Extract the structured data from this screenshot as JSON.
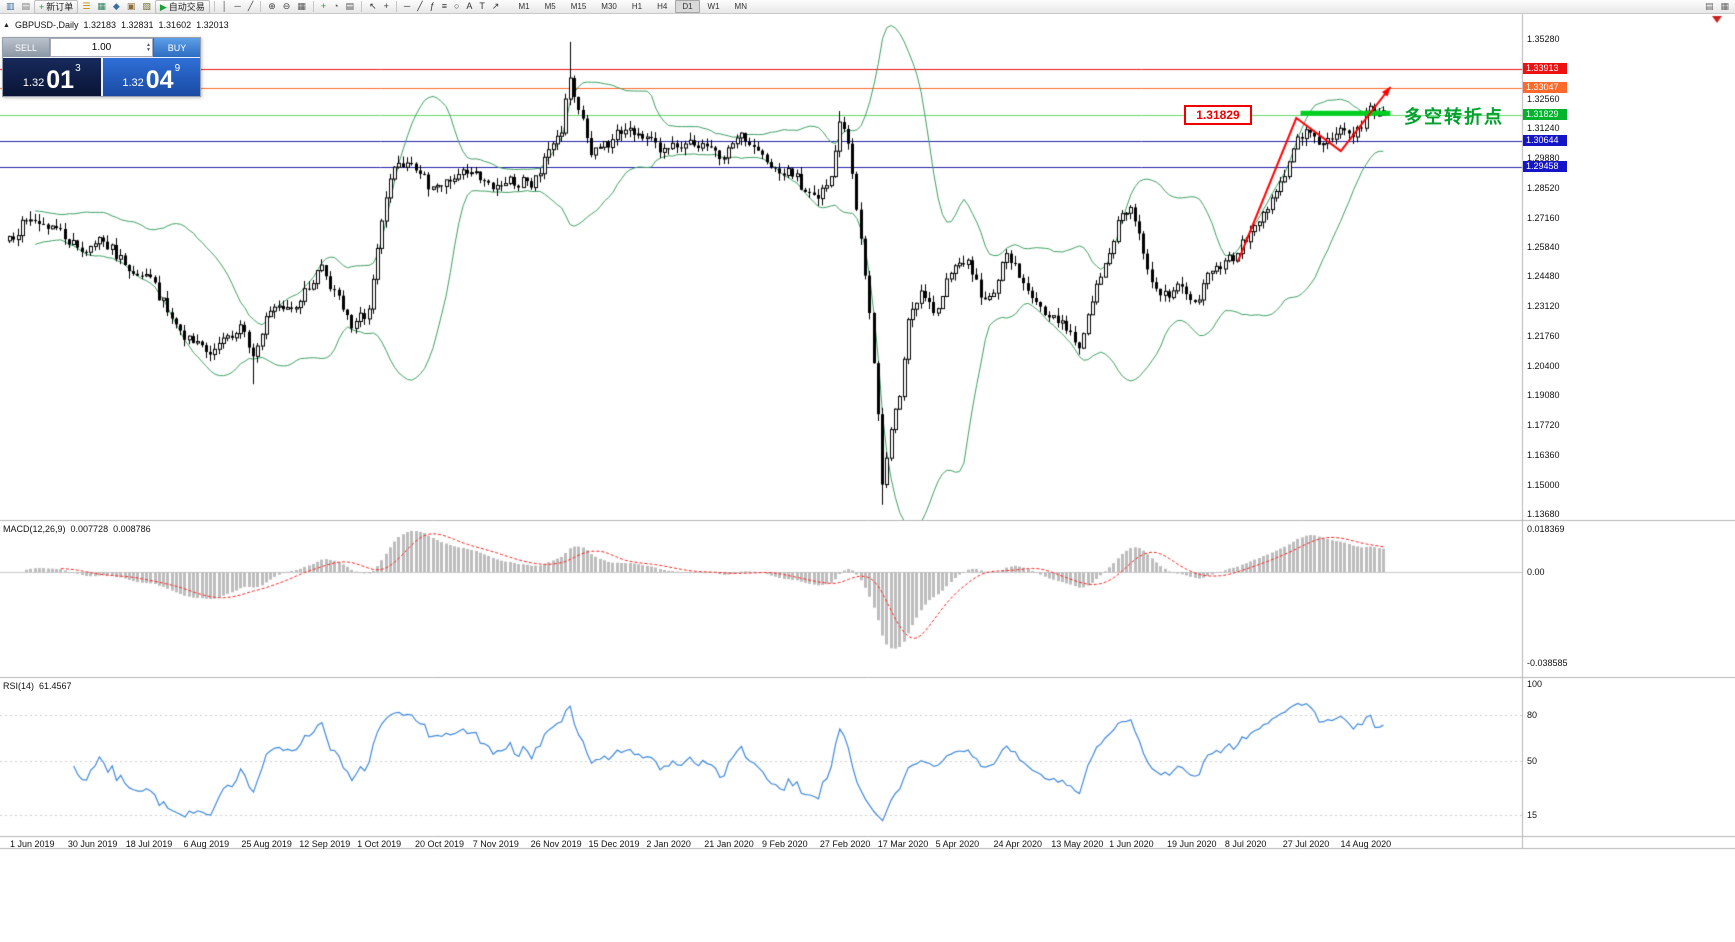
{
  "toolbar": {
    "new_order_label": "新订单",
    "auto_trading_label": "自动交易",
    "timeframes": [
      "M1",
      "M5",
      "M15",
      "M30",
      "H1",
      "H4",
      "D1",
      "W1",
      "MN"
    ],
    "active_timeframe": "D1",
    "groups": [
      {
        "type": "icons",
        "items": [
          {
            "name": "new-chart-icon",
            "glyph": "▥",
            "color": "#3b6ea5"
          },
          {
            "name": "chart-profiles-icon",
            "glyph": "▤",
            "color": "#7a7a7a"
          }
        ]
      },
      {
        "type": "button",
        "name": "new-order-button",
        "label_key": "new_order_label",
        "glyph": "+",
        "glyph_color": "#18a035"
      },
      {
        "type": "icons",
        "items": [
          {
            "name": "market-watch-icon",
            "glyph": "☰",
            "color": "#c08a00"
          },
          {
            "name": "data-window-icon",
            "glyph": "▦",
            "color": "#2f7f5f"
          },
          {
            "name": "navigator-icon",
            "glyph": "◆",
            "color": "#3b6ea5"
          },
          {
            "name": "terminal-icon",
            "glyph": "▣",
            "color": "#8a6d3b"
          },
          {
            "name": "strategy-tester-icon",
            "glyph": "▧",
            "color": "#6f6f2f"
          }
        ]
      },
      {
        "type": "button",
        "name": "auto-trading-button",
        "label_key": "auto_trading_label",
        "glyph": "▶",
        "glyph_color": "#18a035"
      },
      {
        "type": "sep"
      },
      {
        "type": "icons",
        "items": [
          {
            "name": "vertical-line-tool-icon",
            "glyph": "│",
            "color": "#444"
          },
          {
            "name": "horizontal-line-tool-icon",
            "glyph": "─",
            "color": "#444"
          },
          {
            "name": "trendline-tool-icon",
            "glyph": "╱",
            "color": "#444"
          }
        ]
      },
      {
        "type": "sep"
      },
      {
        "type": "icons",
        "items": [
          {
            "name": "zoom-in-icon",
            "glyph": "⊕",
            "color": "#444"
          },
          {
            "name": "zoom-out-icon",
            "glyph": "⊖",
            "color": "#444"
          },
          {
            "name": "tile-windows-icon",
            "glyph": "▦",
            "color": "#555"
          }
        ]
      },
      {
        "type": "sep"
      },
      {
        "type": "icons",
        "items": [
          {
            "name": "add-indicator-icon",
            "glyph": "+",
            "color": "#18a035"
          },
          {
            "name": "clock-icon",
            "glyph": "◔",
            "color": "#555"
          },
          {
            "name": "template-icon",
            "glyph": "▤",
            "color": "#555"
          }
        ]
      },
      {
        "type": "sep"
      },
      {
        "type": "icons",
        "items": [
          {
            "name": "cursor-icon",
            "glyph": "↖",
            "color": "#333"
          },
          {
            "name": "crosshair-icon",
            "glyph": "+",
            "color": "#333"
          }
        ]
      },
      {
        "type": "sep"
      },
      {
        "type": "icons",
        "items": [
          {
            "name": "line-segment-icon",
            "glyph": "─",
            "color": "#333"
          },
          {
            "name": "diagonal-line-icon",
            "glyph": "╱",
            "color": "#333"
          },
          {
            "name": "fibonacci-icon",
            "glyph": "ƒ",
            "color": "#333"
          },
          {
            "name": "channel-icon",
            "glyph": "≡",
            "color": "#333"
          },
          {
            "name": "shapes-icon",
            "glyph": "○",
            "color": "#333"
          },
          {
            "name": "text-tool-icon",
            "glyph": "A",
            "color": "#333"
          },
          {
            "name": "label-tool-icon",
            "glyph": "T",
            "color": "#333"
          },
          {
            "name": "arrow-tool-icon",
            "glyph": "↗",
            "color": "#333"
          }
        ]
      },
      {
        "type": "timeframes"
      },
      {
        "type": "spacer"
      },
      {
        "type": "icons",
        "items": [
          {
            "name": "window-cascade-icon",
            "glyph": "▤",
            "color": "#666"
          },
          {
            "name": "window-tile-icon",
            "glyph": "▦",
            "color": "#666"
          }
        ]
      }
    ]
  },
  "chart_header": {
    "marker": "▲",
    "symbol_period": "GBPUSD-,Daily",
    "open": "1.32183",
    "high": "1.32831",
    "low": "1.31602",
    "close": "1.32013"
  },
  "trade_panel": {
    "sell_label": "SELL",
    "buy_label": "BUY",
    "volume": "1.00",
    "spin_up_glyph": "▲",
    "spin_down_glyph": "▼",
    "sell_small": "1.32",
    "sell_big": "01",
    "sell_sup": "3",
    "buy_small": "1.32",
    "buy_big": "04",
    "buy_sup": "9"
  },
  "price_axis": {
    "ticks": [
      {
        "label": "1.35280",
        "price": 1.3528
      },
      {
        "label": "1.32560",
        "price": 1.3256
      },
      {
        "label": "1.31240",
        "price": 1.3124
      },
      {
        "label": "1.29880",
        "price": 1.2988
      },
      {
        "label": "1.28520",
        "price": 1.2852
      },
      {
        "label": "1.27160",
        "price": 1.2716
      },
      {
        "label": "1.25840",
        "price": 1.2584
      },
      {
        "label": "1.24480",
        "price": 1.2448
      },
      {
        "label": "1.23120",
        "price": 1.2312
      },
      {
        "label": "1.21760",
        "price": 1.2176
      },
      {
        "label": "1.20400",
        "price": 1.204
      },
      {
        "label": "1.19080",
        "price": 1.1908
      },
      {
        "label": "1.17720",
        "price": 1.1772
      },
      {
        "label": "1.16360",
        "price": 1.1636
      },
      {
        "label": "1.15000",
        "price": 1.15
      },
      {
        "label": "1.13680",
        "price": 1.1368
      }
    ],
    "lines": [
      {
        "label": "1.33913",
        "price": 1.33913,
        "line_color": "#ee1111",
        "badge_color": "#ee1111"
      },
      {
        "label": "1.33047",
        "price": 1.33047,
        "line_color": "#ff6a2a",
        "badge_color": "#ff6a2a"
      },
      {
        "label": "1.31829",
        "price": 1.31829,
        "line_color": "#69d969",
        "badge_color": "#00b32c"
      },
      {
        "label": "1.30644",
        "price": 1.30644,
        "line_color": "#2222aa",
        "badge_color": "#1515c8"
      },
      {
        "label": "1.29458",
        "price": 1.29458,
        "line_color": "#2222aa",
        "badge_color": "#1515c8"
      }
    ]
  },
  "macd_axis": [
    {
      "label": "0.018369",
      "value": 0.018369
    },
    {
      "label": "0.00",
      "value": 0
    },
    {
      "label": "-0.038585",
      "value": -0.038585
    }
  ],
  "rsi_axis": [
    {
      "label": "100",
      "value": 100
    },
    {
      "label": "80",
      "value": 80
    },
    {
      "label": "50",
      "value": 50
    },
    {
      "label": "15",
      "value": 15
    }
  ],
  "date_axis": {
    "labels": [
      "1 Jun 2019",
      "30 Jun 2019",
      "18 Jul 2019",
      "6 Aug 2019",
      "25 Aug 2019",
      "12 Sep 2019",
      "1 Oct 2019",
      "20 Oct 2019",
      "7 Nov 2019",
      "26 Nov 2019",
      "15 Dec 2019",
      "2 Jan 2020",
      "21 Jan 2020",
      "9 Feb 2020",
      "27 Feb 2020",
      "17 Mar 2020",
      "5 Apr 2020",
      "24 Apr 2020",
      "13 May 2020",
      "1 Jun 2020",
      "19 Jun 2020",
      "8 Jul 2020",
      "27 Jul 2020",
      "14 Aug 2020"
    ]
  },
  "indicators": {
    "macd_title": "MACD(12,26,9)",
    "macd_main": "0.007728",
    "macd_signal": "0.008786",
    "rsi_title": "RSI(14)",
    "rsi_value": "61.4567"
  },
  "annotations": {
    "pivot_price_label": "1.31829",
    "pivot_text": "多空转折点",
    "trend_polyline": [
      [
        287.4,
        1.2518
      ],
      [
        301,
        1.31685
      ],
      [
        311.4,
        1.30185
      ],
      [
        323,
        1.33094
      ]
    ],
    "green_segment": {
      "idx1": 302,
      "idx2": 323,
      "price": 1.319
    }
  },
  "colors": {
    "bollinger": "#3f9e63",
    "candle": "#000000",
    "candle_up_fill": "#ffffff",
    "macd_bars": "#bdbdbd",
    "macd_signal": "#ff2020",
    "rsi_line": "#4189dd",
    "trend_arrow": "#ff0000",
    "green_segment": "#00cf21",
    "pivot_text": "#00a22d",
    "scroll_marker": "#cc2222"
  },
  "chart_data": {
    "type": "candlestick",
    "symbol": "GBPUSD",
    "timeframe": "Daily",
    "ohlc_current": {
      "open": 1.32183,
      "high": 1.32831,
      "low": 1.31602,
      "close": 1.32013
    },
    "bollinger": {
      "period": 20,
      "deviation": 2
    },
    "macd": {
      "fast": 12,
      "slow": 26,
      "signal": 9,
      "main_value": 0.007728,
      "signal_value": 0.008786,
      "scale_max": 0.018369,
      "scale_min": -0.038585
    },
    "rsi": {
      "period": 14,
      "value": 61.4567,
      "levels": [
        80,
        50,
        15
      ]
    },
    "price_axis_range": {
      "top": 1.36413,
      "bottom": 1.1341
    },
    "candles_total": 322,
    "seed": 7,
    "close_anchors": [
      [
        0,
        1.263
      ],
      [
        5,
        1.2705
      ],
      [
        11,
        1.2668
      ],
      [
        17,
        1.256
      ],
      [
        21,
        1.2625
      ],
      [
        27,
        1.25
      ],
      [
        33,
        1.2445
      ],
      [
        37,
        1.2285
      ],
      [
        41,
        1.216
      ],
      [
        46,
        1.2105
      ],
      [
        50,
        1.2168
      ],
      [
        54,
        1.2228
      ],
      [
        57,
        1.2085
      ],
      [
        61,
        1.229
      ],
      [
        68,
        1.2335
      ],
      [
        73,
        1.25
      ],
      [
        80,
        1.2212
      ],
      [
        84,
        1.23
      ],
      [
        87,
        1.27
      ],
      [
        90,
        1.2945
      ],
      [
        95,
        1.293
      ],
      [
        99,
        1.2855
      ],
      [
        103,
        1.288
      ],
      [
        108,
        1.292
      ],
      [
        113,
        1.2845
      ],
      [
        117,
        1.29
      ],
      [
        122,
        1.2852
      ],
      [
        125,
        1.299
      ],
      [
        129,
        1.31
      ],
      [
        131,
        1.335
      ],
      [
        133,
        1.3205
      ],
      [
        136,
        1.3
      ],
      [
        141,
        1.307
      ],
      [
        145,
        1.3122
      ],
      [
        149,
        1.3082
      ],
      [
        152,
        1.3012
      ],
      [
        157,
        1.3032
      ],
      [
        162,
        1.3052
      ],
      [
        166,
        1.2982
      ],
      [
        171,
        1.31
      ],
      [
        176,
        1.3002
      ],
      [
        183,
        1.2902
      ],
      [
        189,
        1.2802
      ],
      [
        192,
        1.2902
      ],
      [
        194,
        1.315
      ],
      [
        196,
        1.3052
      ],
      [
        198,
        1.2752
      ],
      [
        200,
        1.2452
      ],
      [
        201,
        1.2282
      ],
      [
        203,
        1.1822
      ],
      [
        204,
        1.1502
      ],
      [
        205,
        1.1622
      ],
      [
        206,
        1.1752
      ],
      [
        208,
        1.1902
      ],
      [
        210,
        1.2252
      ],
      [
        213,
        1.2382
      ],
      [
        216,
        1.2282
      ],
      [
        220,
        1.2462
      ],
      [
        224,
        1.2522
      ],
      [
        227,
        1.2352
      ],
      [
        230,
        1.2372
      ],
      [
        233,
        1.2552
      ],
      [
        236,
        1.2442
      ],
      [
        240,
        1.2332
      ],
      [
        243,
        1.2262
      ],
      [
        247,
        1.2202
      ],
      [
        250,
        1.2122
      ],
      [
        253,
        1.2332
      ],
      [
        257,
        1.2552
      ],
      [
        259,
        1.2702
      ],
      [
        262,
        1.2762
      ],
      [
        265,
        1.2552
      ],
      [
        267,
        1.2422
      ],
      [
        271,
        1.2352
      ],
      [
        274,
        1.2402
      ],
      [
        277,
        1.2332
      ],
      [
        281,
        1.2472
      ],
      [
        283,
        1.2482
      ],
      [
        287,
        1.2552
      ],
      [
        290,
        1.2652
      ],
      [
        294,
        1.2752
      ],
      [
        298,
        1.2902
      ],
      [
        301,
        1.3082
      ],
      [
        304,
        1.3102
      ],
      [
        307,
        1.3052
      ],
      [
        309,
        1.3072
      ],
      [
        311,
        1.3122
      ],
      [
        314,
        1.3082
      ],
      [
        316,
        1.3122
      ],
      [
        318,
        1.3222
      ],
      [
        320,
        1.3182
      ],
      [
        321,
        1.32013
      ]
    ],
    "wick_overrides": {
      "5": {
        "h": 1.2745
      },
      "57": {
        "l": 1.1958
      },
      "87": {
        "h": 1.271
      },
      "131": {
        "h": 1.3515
      },
      "194": {
        "h": 1.32
      },
      "204": {
        "l": 1.141
      }
    }
  }
}
